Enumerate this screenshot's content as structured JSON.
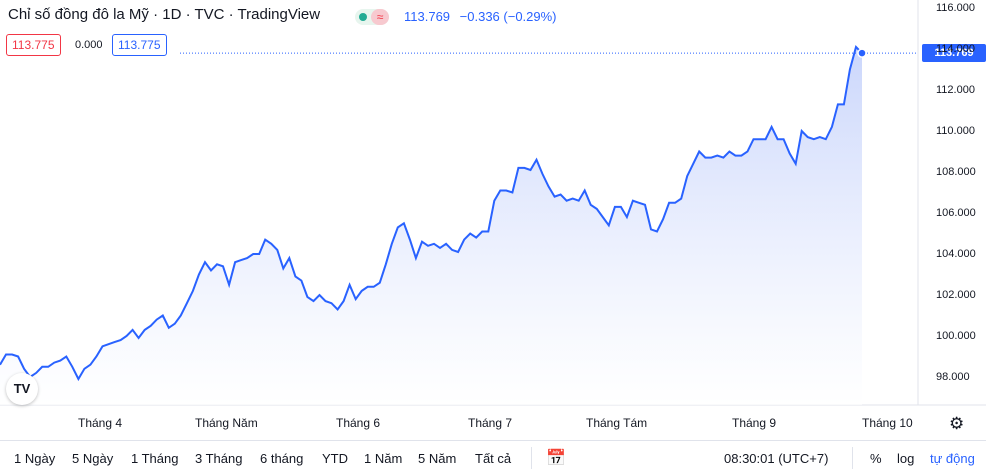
{
  "header": {
    "title": "Chỉ số đồng đô la Mỹ · 1D · TVC · TradingView",
    "status_icon": "≈",
    "last_price": "113.769",
    "change": "−0.336 (−0.29%)"
  },
  "quote_boxes": {
    "bid": "113.775",
    "spread": "0.000",
    "ask": "113.775"
  },
  "price_axis": {
    "labels": [
      "116.000",
      "114.000",
      "112.000",
      "110.000",
      "108.000",
      "106.000",
      "104.000",
      "102.000",
      "100.000",
      "98.000"
    ],
    "current_tag": "113.769"
  },
  "time_axis": {
    "labels": [
      "Tháng 4",
      "Tháng Năm",
      "Tháng 6",
      "Tháng 7",
      "Tháng Tám",
      "Tháng 9",
      "Tháng 10"
    ]
  },
  "bottom_toolbar": {
    "ranges": [
      "1 Ngày",
      "5 Ngày",
      "1 Tháng",
      "3 Tháng",
      "6 tháng",
      "YTD",
      "1 Năm",
      "5 Năm",
      "Tất cả"
    ],
    "time": "08:30:01 (UTC+7)",
    "percent": "%",
    "log": "log",
    "auto": "tự động"
  },
  "logo_text": "TV",
  "colors": {
    "line": "#2962ff",
    "fill_top": "#c5d2fb",
    "fill_bottom": "#ffffff",
    "grid": "#f0f3fa"
  },
  "chart_data": {
    "type": "area",
    "title": "Chỉ số đồng đô la Mỹ",
    "ylim": [
      97,
      116.5
    ],
    "y": [
      98.6,
      99.1,
      99.1,
      99.0,
      98.4,
      98.0,
      98.2,
      98.5,
      98.5,
      98.7,
      98.8,
      99.0,
      98.5,
      97.9,
      98.4,
      98.6,
      99.0,
      99.5,
      99.6,
      99.7,
      99.8,
      100.0,
      100.3,
      99.9,
      100.3,
      100.5,
      100.8,
      101.0,
      100.4,
      100.6,
      101.0,
      101.6,
      102.2,
      103.0,
      103.6,
      103.2,
      103.5,
      103.4,
      102.5,
      103.6,
      103.7,
      103.8,
      104.0,
      104.0,
      104.7,
      104.5,
      104.2,
      103.3,
      103.8,
      102.9,
      102.7,
      101.9,
      101.7,
      102.0,
      101.7,
      101.6,
      101.3,
      101.7,
      102.5,
      101.8,
      102.2,
      102.4,
      102.4,
      102.6,
      103.5,
      104.5,
      105.3,
      105.5,
      104.7,
      103.8,
      104.6,
      104.4,
      104.5,
      104.3,
      104.5,
      104.2,
      104.1,
      104.7,
      105.0,
      104.8,
      105.1,
      105.1,
      106.6,
      107.1,
      107.1,
      107.0,
      108.2,
      108.2,
      108.1,
      108.6,
      107.9,
      107.3,
      106.8,
      106.9,
      106.6,
      106.7,
      106.6,
      107.1,
      106.4,
      106.2,
      105.8,
      105.4,
      106.3,
      106.3,
      105.8,
      106.6,
      106.5,
      106.4,
      105.2,
      105.1,
      105.7,
      106.5,
      106.5,
      106.7,
      107.8,
      108.4,
      109.0,
      108.7,
      108.7,
      108.8,
      108.7,
      109.0,
      108.8,
      108.8,
      109.0,
      109.6,
      109.6,
      109.6,
      110.2,
      109.6,
      109.6,
      108.9,
      108.4,
      110.0,
      109.7,
      109.6,
      109.7,
      109.6,
      110.2,
      111.3,
      111.3,
      113.0,
      114.1,
      113.8
    ]
  }
}
